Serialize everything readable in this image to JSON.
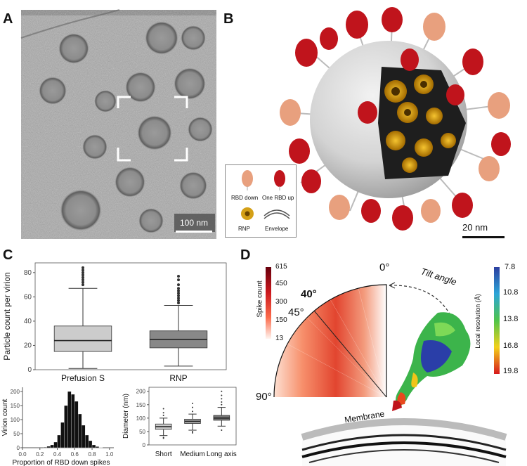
{
  "panels": {
    "a": "A",
    "b": "B",
    "c": "C",
    "d": "D"
  },
  "panel_a": {
    "scale_bar": "100 nm"
  },
  "panel_b": {
    "legend": {
      "rbd_down": "RBD down",
      "one_rbd_up": "One RBD up",
      "rnp": "RNP",
      "envelope": "Envelope"
    },
    "scale_bar": "20 nm",
    "colors": {
      "rbd_down": "#e8a07e",
      "rbd_up": "#c0141c",
      "rnp": "#d4a017",
      "envelope": "#d6d6d6"
    }
  },
  "panel_d": {
    "colorbar_left": {
      "title": "Spike count",
      "ticks": [
        "615",
        "450",
        "300",
        "150",
        "13"
      ]
    },
    "angles": {
      "a0": "0°",
      "a40": "40°",
      "a45": "45°",
      "a90": "90°"
    },
    "tilt_label": "Tilt angle",
    "membrane_label": "Membrane",
    "colorbar_right": {
      "title": "Local resolution (Å)",
      "ticks": [
        "7.8",
        "10.8",
        "13.8",
        "16.8",
        "19.8"
      ]
    }
  },
  "chart_data": [
    {
      "type": "box",
      "ylabel": "Particle count per virion",
      "categories": [
        "Prefusion S",
        "RNP"
      ],
      "yticks": [
        0,
        20,
        40,
        60,
        80
      ],
      "ylim": [
        0,
        88
      ],
      "boxes": [
        {
          "name": "Prefusion S",
          "whisker_low": 1,
          "q1": 15,
          "median": 24,
          "q3": 36,
          "whisker_high": 67,
          "outliers": [
            70,
            72,
            74,
            76,
            78,
            80,
            82,
            84
          ],
          "color": "#cccccc"
        },
        {
          "name": "RNP",
          "whisker_low": 3,
          "q1": 18,
          "median": 25,
          "q3": 32,
          "whisker_high": 53,
          "outliers": [
            55,
            57,
            59,
            61,
            63,
            65,
            67,
            70,
            74,
            77
          ],
          "color": "#888888"
        }
      ]
    },
    {
      "type": "histogram",
      "xlabel": "Proportion of RBD down spikes",
      "ylabel": "Virion count",
      "xticks": [
        "0.0",
        "0.2",
        "0.4",
        "0.6",
        "0.8",
        "1.0"
      ],
      "yticks": [
        0,
        50,
        100,
        150,
        200
      ],
      "xlim": [
        0,
        1.05
      ],
      "ylim": [
        0,
        215
      ],
      "bin_width": 0.04,
      "bin_starts": [
        0.24,
        0.28,
        0.32,
        0.36,
        0.4,
        0.44,
        0.48,
        0.52,
        0.56,
        0.6,
        0.64,
        0.68,
        0.72,
        0.76,
        0.8,
        0.84,
        0.88
      ],
      "counts": [
        2,
        5,
        10,
        20,
        45,
        90,
        150,
        200,
        190,
        165,
        120,
        80,
        45,
        25,
        10,
        4,
        1
      ]
    },
    {
      "type": "box",
      "ylabel": "Diameter (nm)",
      "categories": [
        "Short",
        "Medium",
        "Long axis"
      ],
      "yticks": [
        0,
        50,
        100,
        150,
        200
      ],
      "ylim": [
        0,
        215
      ],
      "boxes": [
        {
          "name": "Short",
          "whisker_low": 35,
          "q1": 58,
          "median": 68,
          "q3": 78,
          "whisker_high": 100,
          "outliers": [
            25,
            28,
            110,
            120,
            135
          ],
          "color": "#cccccc"
        },
        {
          "name": "Medium",
          "whisker_low": 55,
          "q1": 80,
          "median": 88,
          "q3": 96,
          "whisker_high": 115,
          "outliers": [
            45,
            50,
            125,
            140,
            155
          ],
          "color": "#aaaaaa"
        },
        {
          "name": "Long axis",
          "whisker_low": 70,
          "q1": 92,
          "median": 100,
          "q3": 110,
          "whisker_high": 140,
          "outliers": [
            55,
            150,
            160,
            172,
            185,
            200
          ],
          "color": "#777777"
        }
      ]
    }
  ]
}
